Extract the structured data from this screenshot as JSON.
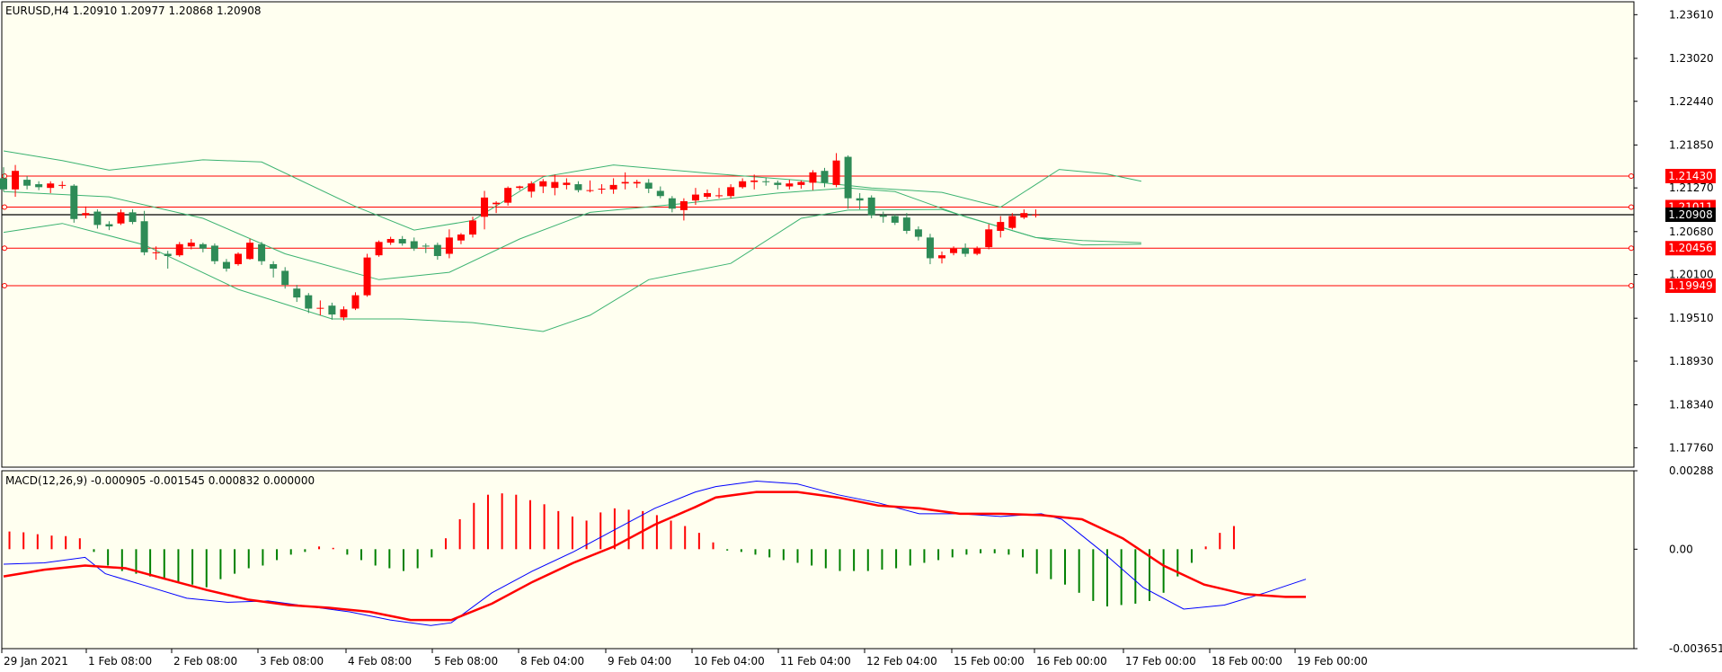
{
  "chart_data": [
    {
      "type": "candlestick",
      "symbol": "EURUSD",
      "timeframe": "H4",
      "header_text": "EURUSD,H4  1.20910 1.20977 1.20868 1.20908",
      "ohlc": {
        "open": 1.2091,
        "high": 1.20977,
        "low": 1.20868,
        "close": 1.20908
      },
      "y_ticks": [
        "1.23610",
        "1.23020",
        "1.22440",
        "1.21850",
        "1.21270",
        "1.20680",
        "1.20100",
        "1.19510",
        "1.18930",
        "1.18340",
        "1.17760"
      ],
      "ylim": [
        1.17498,
        1.23784
      ],
      "current_price_label": "1.20908",
      "current_price": 1.20908,
      "horizontal_levels": [
        {
          "price": 1.2143,
          "label": "1.21430"
        },
        {
          "price": 1.21011,
          "label": "1.21011"
        },
        {
          "price": 1.20456,
          "label": "1.20456"
        },
        {
          "price": 1.19949,
          "label": "1.19949"
        }
      ],
      "up_color": "#ff0000",
      "down_color": "#2e8b57",
      "candles": [
        [
          1.214,
          1.2155,
          1.2122,
          1.2125
        ],
        [
          1.2125,
          1.2158,
          1.2115,
          1.215
        ],
        [
          1.2138,
          1.2143,
          1.2125,
          1.213
        ],
        [
          1.2132,
          1.2136,
          1.2124,
          1.2128
        ],
        [
          1.2127,
          1.2136,
          1.212,
          1.2133
        ],
        [
          1.2131,
          1.2136,
          1.2126,
          1.2131
        ],
        [
          1.213,
          1.2132,
          1.208,
          1.2085
        ],
        [
          1.209,
          1.2102,
          1.2086,
          1.2093
        ],
        [
          1.2095,
          1.2098,
          1.2072,
          1.2077
        ],
        [
          1.2078,
          1.2082,
          1.207,
          1.2075
        ],
        [
          1.2079,
          1.2098,
          1.2077,
          1.2094
        ],
        [
          1.2094,
          1.2098,
          1.2078,
          1.2081
        ],
        [
          1.2082,
          1.2096,
          1.2036,
          1.204
        ],
        [
          1.204,
          1.2048,
          1.203,
          1.204
        ],
        [
          1.2038,
          1.2042,
          1.2018,
          1.2035
        ],
        [
          1.2036,
          1.2054,
          1.2034,
          1.2051
        ],
        [
          1.2048,
          1.2058,
          1.2044,
          1.2053
        ],
        [
          1.2051,
          1.2053,
          1.204,
          1.2045
        ],
        [
          1.2049,
          1.2052,
          1.2024,
          1.2028
        ],
        [
          1.2027,
          1.2031,
          1.2014,
          1.2018
        ],
        [
          1.2024,
          1.204,
          1.2022,
          1.2038
        ],
        [
          1.2031,
          1.2058,
          1.203,
          1.2053
        ],
        [
          1.2051,
          1.2054,
          1.2023,
          1.2028
        ],
        [
          1.2024,
          1.2028,
          1.2006,
          1.2018
        ],
        [
          1.2015,
          1.202,
          1.1991,
          1.1996
        ],
        [
          1.1991,
          1.1996,
          1.1973,
          1.1979
        ],
        [
          1.1982,
          1.1985,
          1.1958,
          1.1964
        ],
        [
          1.1965,
          1.1975,
          1.1955,
          1.1965
        ],
        [
          1.1968,
          1.1972,
          1.1949,
          1.1956
        ],
        [
          1.1952,
          1.1967,
          1.1948,
          1.1963
        ],
        [
          1.1964,
          1.1986,
          1.1962,
          1.1982
        ],
        [
          1.1982,
          1.2038,
          1.198,
          1.2033
        ],
        [
          1.2036,
          1.2056,
          1.2034,
          1.2054
        ],
        [
          1.2053,
          1.2061,
          1.205,
          1.2058
        ],
        [
          1.2058,
          1.2062,
          1.2049,
          1.2052
        ],
        [
          1.2055,
          1.206,
          1.2042,
          1.2045
        ],
        [
          1.2049,
          1.2052,
          1.2039,
          1.2048
        ],
        [
          1.205,
          1.2053,
          1.203,
          1.2035
        ],
        [
          1.2038,
          1.2071,
          1.2032,
          1.206
        ],
        [
          1.2056,
          1.2066,
          1.2051,
          1.2064
        ],
        [
          1.2064,
          1.2088,
          1.206,
          1.2083
        ],
        [
          1.2088,
          1.2123,
          1.2071,
          1.2114
        ],
        [
          1.2105,
          1.2109,
          1.2093,
          1.2107
        ],
        [
          1.2107,
          1.2129,
          1.2103,
          1.2127
        ],
        [
          1.2127,
          1.213,
          1.2124,
          1.2129
        ],
        [
          1.2122,
          1.2136,
          1.2114,
          1.2133
        ],
        [
          1.2129,
          1.2139,
          1.212,
          1.2136
        ],
        [
          1.2127,
          1.2145,
          1.2117,
          1.2135
        ],
        [
          1.2131,
          1.214,
          1.2125,
          1.2134
        ],
        [
          1.2132,
          1.2136,
          1.2121,
          1.2124
        ],
        [
          1.2123,
          1.2137,
          1.2121,
          1.2124
        ],
        [
          1.2125,
          1.2132,
          1.2119,
          1.2126
        ],
        [
          1.2125,
          1.214,
          1.2119,
          1.2131
        ],
        [
          1.2133,
          1.2148,
          1.2125,
          1.2135
        ],
        [
          1.2133,
          1.2138,
          1.2127,
          1.2135
        ],
        [
          1.2134,
          1.2139,
          1.212,
          1.2126
        ],
        [
          1.2123,
          1.2129,
          1.2113,
          1.2116
        ],
        [
          1.2113,
          1.2116,
          1.2094,
          1.2099
        ],
        [
          1.2097,
          1.2113,
          1.2083,
          1.2109
        ],
        [
          1.211,
          1.2127,
          1.2104,
          1.2118
        ],
        [
          1.2115,
          1.2125,
          1.2112,
          1.212
        ],
        [
          1.2116,
          1.2127,
          1.2113,
          1.2117
        ],
        [
          1.2116,
          1.2132,
          1.2113,
          1.2128
        ],
        [
          1.2128,
          1.214,
          1.2126,
          1.2136
        ],
        [
          1.2135,
          1.2145,
          1.2125,
          1.2137
        ],
        [
          1.2136,
          1.2141,
          1.213,
          1.2135
        ],
        [
          1.2134,
          1.2137,
          1.2125,
          1.2131
        ],
        [
          1.2129,
          1.2138,
          1.2125,
          1.2133
        ],
        [
          1.2131,
          1.2137,
          1.2126,
          1.2135
        ],
        [
          1.2134,
          1.2151,
          1.2124,
          1.2148
        ],
        [
          1.215,
          1.2154,
          1.2128,
          1.2134
        ],
        [
          1.2131,
          1.2174,
          1.2128,
          1.2164
        ],
        [
          1.2169,
          1.2171,
          1.2099,
          1.2113
        ],
        [
          1.2113,
          1.212,
          1.2098,
          1.211
        ],
        [
          1.2114,
          1.2117,
          1.2086,
          1.209
        ],
        [
          1.209,
          1.2095,
          1.208,
          1.2088
        ],
        [
          1.2089,
          1.2091,
          1.2077,
          1.208
        ],
        [
          1.2087,
          1.2093,
          1.2065,
          1.2069
        ],
        [
          1.2071,
          1.2075,
          1.2056,
          1.2061
        ],
        [
          1.206,
          1.2065,
          1.2024,
          1.2032
        ],
        [
          1.2032,
          1.2041,
          1.2025,
          1.2036
        ],
        [
          1.2039,
          1.2048,
          1.2036,
          1.2045
        ],
        [
          1.2046,
          1.2052,
          1.2034,
          1.2038
        ],
        [
          1.2038,
          1.2048,
          1.2036,
          1.2045
        ],
        [
          1.2047,
          1.2078,
          1.2044,
          1.2071
        ],
        [
          1.2069,
          1.2089,
          1.206,
          1.2081
        ],
        [
          1.2073,
          1.2093,
          1.2071,
          1.2089
        ],
        [
          1.2087,
          1.2098,
          1.2085,
          1.2093
        ],
        [
          1.2091,
          1.2098,
          1.2087,
          1.2091
        ]
      ],
      "bollinger": {
        "upper": [
          [
            0,
            1.2177
          ],
          [
            5,
            1.2164
          ],
          [
            9,
            1.2151
          ],
          [
            17,
            1.2165
          ],
          [
            22,
            1.2162
          ],
          [
            30,
            1.2102
          ],
          [
            35,
            1.207
          ],
          [
            40,
            1.2083
          ],
          [
            46,
            1.2142
          ],
          [
            52,
            1.2158
          ],
          [
            60,
            1.2147
          ],
          [
            68,
            1.2137
          ],
          [
            74,
            1.2127
          ],
          [
            80,
            1.2121
          ],
          [
            85,
            1.2101
          ],
          [
            90,
            1.2152
          ],
          [
            94,
            1.2146
          ],
          [
            97,
            1.2136
          ]
        ],
        "middle": [
          [
            0,
            1.2122
          ],
          [
            9,
            1.2115
          ],
          [
            17,
            1.2086
          ],
          [
            24,
            1.2038
          ],
          [
            32,
            1.2003
          ],
          [
            38,
            1.2013
          ],
          [
            44,
            1.2058
          ],
          [
            50,
            1.2094
          ],
          [
            58,
            1.2106
          ],
          [
            66,
            1.212
          ],
          [
            72,
            1.2127
          ],
          [
            76,
            1.2122
          ],
          [
            82,
            1.2088
          ],
          [
            88,
            1.206
          ],
          [
            92,
            1.2056
          ],
          [
            97,
            1.2053
          ]
        ],
        "lower": [
          [
            0,
            1.2067
          ],
          [
            5,
            1.2079
          ],
          [
            12,
            1.205
          ],
          [
            20,
            1.199
          ],
          [
            28,
            1.195
          ],
          [
            34,
            1.195
          ],
          [
            40,
            1.1945
          ],
          [
            46,
            1.1933
          ],
          [
            50,
            1.1955
          ],
          [
            55,
            1.2003
          ],
          [
            62,
            1.2025
          ],
          [
            68,
            1.2086
          ],
          [
            72,
            1.2097
          ],
          [
            80,
            1.2098
          ],
          [
            88,
            1.206
          ],
          [
            92,
            1.205
          ],
          [
            97,
            1.2051
          ]
        ]
      }
    },
    {
      "type": "bar+line",
      "header_text": "MACD(12,26,9) -0.000905 -0.001545 0.000832 0.000000",
      "ylim": [
        -0.003651,
        0.00288
      ],
      "y_ticks": [
        "0.00288",
        "0.00",
        "-0.003651"
      ],
      "histogram_up_color": "#ff0000",
      "histogram_down_color": "#008000",
      "histogram": [
        0.00065,
        0.00062,
        0.00055,
        0.0005,
        0.00048,
        0.0004,
        -0.0001,
        -0.0006,
        -0.0008,
        -0.0009,
        -0.001,
        -0.0011,
        -0.0012,
        -0.0013,
        -0.0014,
        -0.0011,
        -0.0009,
        -0.0007,
        -0.0006,
        -0.0004,
        -0.0002,
        -0.0001,
        0.0001,
        5e-05,
        -0.0002,
        -0.0004,
        -0.0006,
        -0.0007,
        -0.0008,
        -0.0007,
        -0.0003,
        0.0004,
        0.0011,
        0.0017,
        0.002,
        0.00205,
        0.002,
        0.0018,
        0.00165,
        0.0014,
        0.0012,
        0.00105,
        0.00135,
        0.0015,
        0.00145,
        0.0014,
        0.00125,
        0.00105,
        0.00085,
        0.0006,
        0.00025,
        -5e-05,
        -0.0001,
        -0.0002,
        -0.0003,
        -0.0004,
        -0.0005,
        -0.0006,
        -0.0007,
        -0.0008,
        -0.0008,
        -0.0008,
        -0.00075,
        -0.0007,
        -0.0006,
        -0.0005,
        -0.0004,
        -0.0003,
        -0.0002,
        -0.00015,
        -0.00015,
        -0.0002,
        -0.0003,
        -0.0009,
        -0.0011,
        -0.0013,
        -0.0016,
        -0.0019,
        -0.0021,
        -0.00205,
        -0.002,
        -0.0019,
        -0.0016,
        -0.001,
        -0.0005,
        0.0001,
        0.0006,
        0.00085
      ],
      "main_line": [
        [
          0,
          -0.00055
        ],
        [
          4,
          -0.0005
        ],
        [
          8,
          -0.0003
        ],
        [
          10,
          -0.0009
        ],
        [
          14,
          -0.00135
        ],
        [
          18,
          -0.0018
        ],
        [
          22,
          -0.00195
        ],
        [
          26,
          -0.0019
        ],
        [
          30,
          -0.0021
        ],
        [
          34,
          -0.0023
        ],
        [
          38,
          -0.0026
        ],
        [
          42,
          -0.0028
        ],
        [
          44,
          -0.0027
        ],
        [
          48,
          -0.0016
        ],
        [
          52,
          -0.0008
        ],
        [
          56,
          -0.0001
        ],
        [
          60,
          0.0007
        ],
        [
          64,
          0.0015
        ],
        [
          68,
          0.0021
        ],
        [
          70,
          0.0023
        ],
        [
          74,
          0.0025
        ],
        [
          78,
          0.0024
        ],
        [
          82,
          0.002
        ],
        [
          86,
          0.0017
        ],
        [
          90,
          0.0013
        ],
        [
          94,
          0.0013
        ],
        [
          98,
          0.0012
        ],
        [
          102,
          0.0013
        ],
        [
          104,
          0.0011
        ],
        [
          108,
          -0.0001
        ],
        [
          112,
          -0.0014
        ],
        [
          116,
          -0.0022
        ],
        [
          120,
          -0.00205
        ],
        [
          124,
          -0.0016
        ],
        [
          128,
          -0.0011
        ]
      ],
      "signal_line": [
        [
          0,
          -0.001
        ],
        [
          4,
          -0.00075
        ],
        [
          8,
          -0.0006
        ],
        [
          12,
          -0.0007
        ],
        [
          16,
          -0.0011
        ],
        [
          20,
          -0.0015
        ],
        [
          24,
          -0.00185
        ],
        [
          28,
          -0.00205
        ],
        [
          32,
          -0.00215
        ],
        [
          36,
          -0.0023
        ],
        [
          40,
          -0.0026
        ],
        [
          44,
          -0.0026
        ],
        [
          48,
          -0.002
        ],
        [
          52,
          -0.0012
        ],
        [
          56,
          -0.0005
        ],
        [
          60,
          0.0001
        ],
        [
          64,
          0.0009
        ],
        [
          68,
          0.00155
        ],
        [
          70,
          0.0019
        ],
        [
          74,
          0.0021
        ],
        [
          78,
          0.0021
        ],
        [
          82,
          0.0019
        ],
        [
          86,
          0.0016
        ],
        [
          90,
          0.0015
        ],
        [
          94,
          0.0013
        ],
        [
          98,
          0.0013
        ],
        [
          102,
          0.00125
        ],
        [
          106,
          0.0011
        ],
        [
          110,
          0.0004
        ],
        [
          114,
          -0.0006
        ],
        [
          118,
          -0.0013
        ],
        [
          122,
          -0.00165
        ],
        [
          126,
          -0.00175
        ],
        [
          128,
          -0.00175
        ]
      ],
      "main_line_color": "#0000ff",
      "signal_line_color": "#ff0000"
    }
  ],
  "x_labels": [
    "29 Jan 2021",
    "1 Feb 08:00",
    "2 Feb 08:00",
    "3 Feb 08:00",
    "4 Feb 08:00",
    "5 Feb 08:00",
    "8 Feb 04:00",
    "9 Feb 04:00",
    "10 Feb 04:00",
    "11 Feb 04:00",
    "12 Feb 04:00",
    "15 Feb 00:00",
    "16 Feb 00:00",
    "17 Feb 00:00",
    "18 Feb 00:00",
    "19 Feb 00:00"
  ],
  "colors": {
    "chart_bg": "#fffff0",
    "page_bg": "#ffffff",
    "axis_text": "#000000",
    "level_line": "#ff0000",
    "current_line": "#000000",
    "bands": "#3cb371"
  }
}
